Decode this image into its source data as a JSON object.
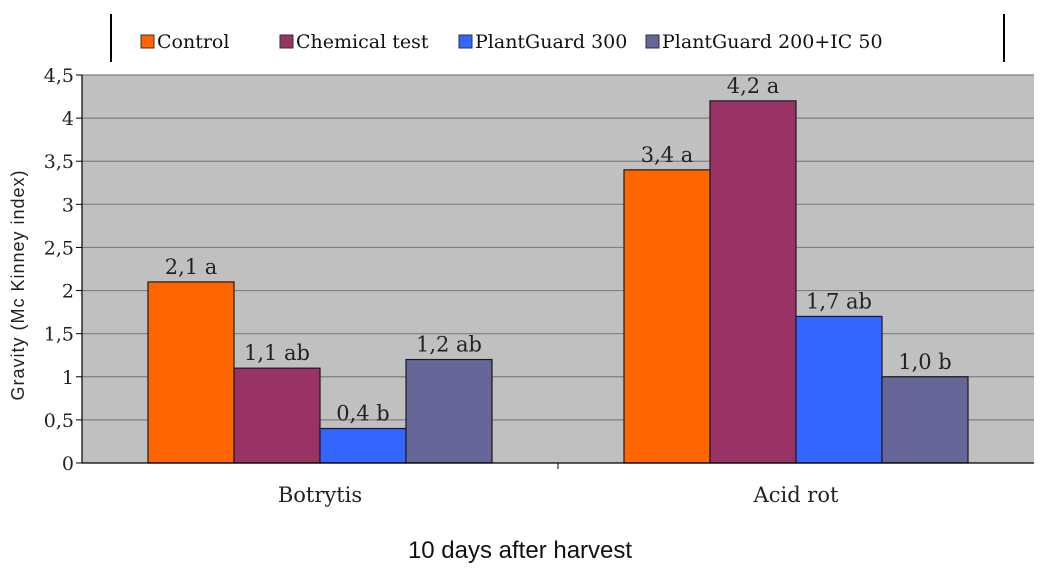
{
  "colors": {
    "plot_background": "#c0c0c0",
    "gridline": "#7f7f7f",
    "Control": "#ff6600",
    "Chemical test": "#993366",
    "PlantGuard 300": "#3366ff",
    "PlantGuard 200+IC  50": "#666699"
  },
  "chart_data": {
    "type": "bar",
    "title": "",
    "xlabel": "10 days after harvest",
    "ylabel": "Gravity (Mc Kinney index)",
    "categories": [
      "Botrytis",
      "Acid rot"
    ],
    "ylim": [
      0,
      4.5
    ],
    "yticks": [
      0,
      0.5,
      1,
      1.5,
      2,
      2.5,
      3,
      3.5,
      4,
      4.5
    ],
    "ytick_labels": [
      "0",
      "0,5",
      "1",
      "1,5",
      "2",
      "2,5",
      "3",
      "3,5",
      "4",
      "4,5"
    ],
    "grid": true,
    "legend_position": "top",
    "series": [
      {
        "name": "Control",
        "values": [
          2.1,
          3.4
        ],
        "labels": [
          "2,1 a",
          "3,4 a"
        ]
      },
      {
        "name": "Chemical test",
        "values": [
          1.1,
          4.2
        ],
        "labels": [
          "1,1 ab",
          "4,2 a"
        ]
      },
      {
        "name": "PlantGuard 300",
        "values": [
          0.4,
          1.7
        ],
        "labels": [
          "0,4 b",
          "1,7 ab"
        ]
      },
      {
        "name": "PlantGuard 200+IC  50",
        "values": [
          1.2,
          1.0
        ],
        "labels": [
          "1,2 ab",
          "1,0 b"
        ]
      }
    ]
  }
}
